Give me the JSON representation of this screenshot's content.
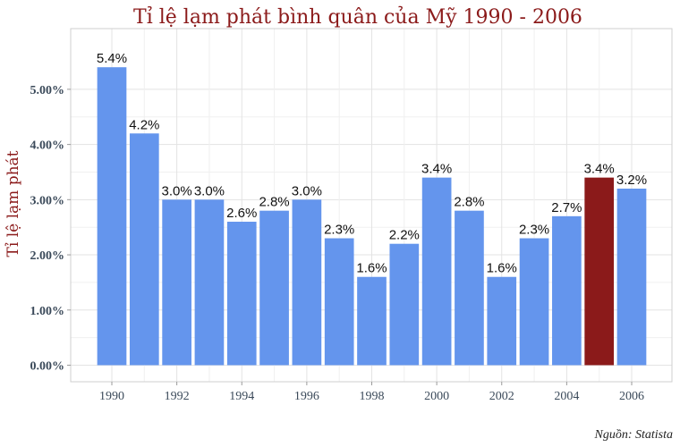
{
  "chart_data": {
    "type": "bar",
    "title": "Tỉ lệ lạm phát bình quân của Mỹ 1990 - 2006",
    "xlabel": "",
    "ylabel": "Tỉ lệ lạm phát",
    "source": "Nguồn: Statista",
    "categories": [
      1990,
      1991,
      1992,
      1993,
      1994,
      1995,
      1996,
      1997,
      1998,
      1999,
      2000,
      2001,
      2002,
      2003,
      2004,
      2005,
      2006
    ],
    "values": [
      5.4,
      4.2,
      3.0,
      3.0,
      2.6,
      2.8,
      3.0,
      2.3,
      1.6,
      2.2,
      3.4,
      2.8,
      1.6,
      2.3,
      2.7,
      3.4,
      3.2
    ],
    "data_labels": [
      "5.4%",
      "4.2%",
      "3.0%",
      "3.0%",
      "2.6%",
      "2.8%",
      "3.0%",
      "2.3%",
      "1.6%",
      "2.2%",
      "3.4%",
      "2.8%",
      "1.6%",
      "2.3%",
      "2.7%",
      "3.4%",
      "3.2%"
    ],
    "highlight_category": 2005,
    "colors": {
      "default": "#6495ed",
      "highlight": "#8b1a1a"
    },
    "xticks": [
      1990,
      1992,
      1994,
      1996,
      1998,
      2000,
      2002,
      2004,
      2006
    ],
    "yticks": [
      0,
      1,
      2,
      3,
      4,
      5
    ],
    "ytick_labels": [
      "0.00%",
      "1.00%",
      "2.00%",
      "3.00%",
      "4.00%",
      "5.00%"
    ],
    "ylim": [
      -0.3,
      6.1
    ],
    "grid": true
  }
}
